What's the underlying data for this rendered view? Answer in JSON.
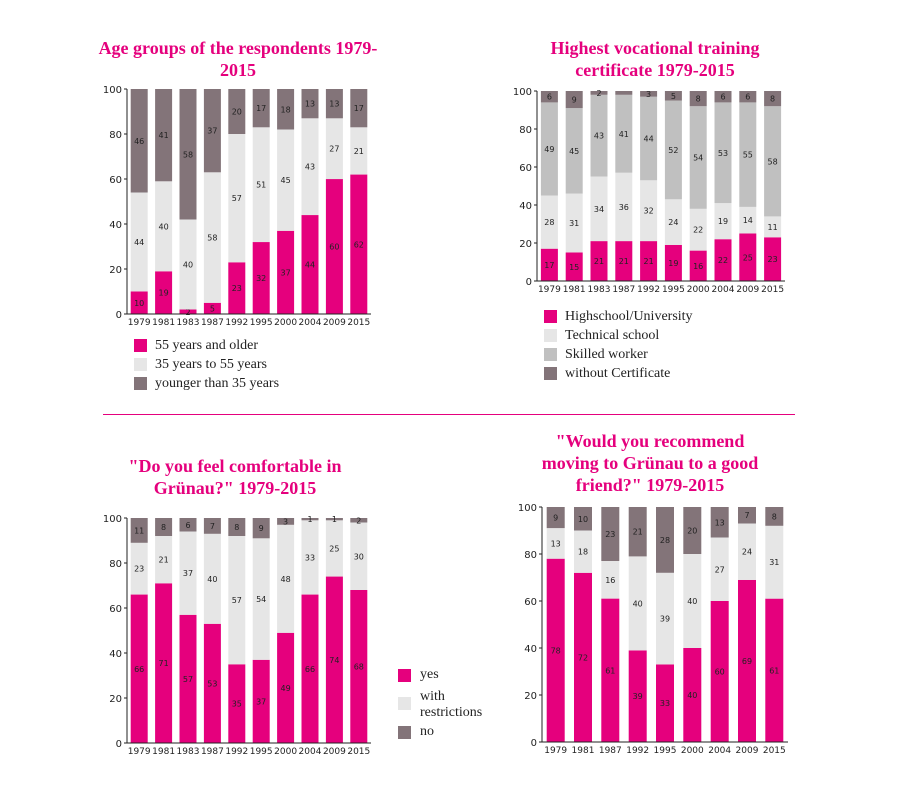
{
  "colors": {
    "magenta": "#e5007d",
    "light": "#e6e6e6",
    "mid": "#c0c0c0",
    "dark": "#837479"
  },
  "legends": {
    "age": [
      {
        "label": "55 years and older",
        "color": "#e5007d"
      },
      {
        "label": "35 years to 55 years",
        "color": "#e6e6e6"
      },
      {
        "label": "younger than 35 years",
        "color": "#837479"
      }
    ],
    "vocational": [
      {
        "label": "Highschool/University",
        "color": "#e5007d"
      },
      {
        "label": "Technical school",
        "color": "#e6e6e6"
      },
      {
        "label": "Skilled worker",
        "color": "#c0c0c0"
      },
      {
        "label": "without Certificate",
        "color": "#837479"
      }
    ],
    "answers": [
      {
        "label": "yes",
        "color": "#e5007d"
      },
      {
        "label": "with restrictions",
        "color": "#e6e6e6"
      },
      {
        "label": "no",
        "color": "#837479"
      }
    ]
  },
  "chart_data": [
    {
      "type": "bar",
      "stacked": true,
      "title": "Age groups of the respondents 1979-2015",
      "categories": [
        "1979",
        "1981",
        "1983",
        "1987",
        "1992",
        "1995",
        "2000",
        "2004",
        "2009",
        "2015"
      ],
      "ylim": [
        0,
        100
      ],
      "yticks": [
        0,
        20,
        40,
        60,
        80,
        100
      ],
      "series": [
        {
          "name": "55 years and older",
          "color": "#e5007d",
          "values": [
            10,
            19,
            2,
            5,
            23,
            32,
            37,
            44,
            60,
            62
          ],
          "labels": [
            "10",
            "19",
            "2",
            "5",
            "23",
            "32",
            "37",
            "44",
            "60",
            "62"
          ]
        },
        {
          "name": "35 years to 55 years",
          "color": "#e6e6e6",
          "values": [
            44,
            40,
            40,
            58,
            57,
            51,
            45,
            43,
            27,
            21
          ],
          "labels": [
            "44",
            "40",
            "40",
            "58",
            "57",
            "51",
            "45",
            "43",
            "27",
            "21"
          ]
        },
        {
          "name": "younger than 35 years",
          "color": "#837479",
          "values": [
            46,
            41,
            58,
            37,
            20,
            17,
            18,
            13,
            13,
            17
          ],
          "labels": [
            "46",
            "41",
            "58",
            "37",
            "20",
            "17",
            "18",
            "13",
            "13",
            "17"
          ]
        }
      ]
    },
    {
      "type": "bar",
      "stacked": true,
      "title": "Highest vocational training certificate 1979-2015",
      "categories": [
        "1979",
        "1981",
        "1983",
        "1987",
        "1992",
        "1995",
        "2000",
        "2004",
        "2009",
        "2015"
      ],
      "ylim": [
        0,
        100
      ],
      "yticks": [
        0,
        20,
        40,
        60,
        80,
        100
      ],
      "series": [
        {
          "name": "Highschool/University",
          "color": "#e5007d",
          "values": [
            17,
            15,
            21,
            21,
            21,
            19,
            16,
            22,
            25,
            23
          ],
          "labels": [
            "17",
            "15",
            "21",
            "21",
            "21",
            "19",
            "16",
            "22",
            "25",
            "23"
          ]
        },
        {
          "name": "Technical school",
          "color": "#e6e6e6",
          "values": [
            28,
            31,
            34,
            36,
            32,
            24,
            22,
            19,
            14,
            11
          ],
          "labels": [
            "28",
            "31",
            "34",
            "36",
            "32",
            "24",
            "22",
            "19",
            "14",
            "11"
          ]
        },
        {
          "name": "Skilled worker",
          "color": "#c0c0c0",
          "values": [
            49,
            45,
            43,
            41,
            44,
            52,
            54,
            53,
            55,
            58
          ],
          "labels": [
            "49",
            "45",
            "43",
            "41",
            "44",
            "52",
            "54",
            "53",
            "55",
            "58"
          ]
        },
        {
          "name": "without Certificate",
          "color": "#837479",
          "values": [
            6,
            9,
            2,
            2,
            3,
            5,
            8,
            6,
            6,
            8
          ],
          "labels": [
            "6",
            "9",
            "2",
            "",
            "3",
            "5",
            "8",
            "6",
            "6",
            "8"
          ]
        }
      ]
    },
    {
      "type": "bar",
      "stacked": true,
      "title": "\"Do you feel comfortable in Grünau?\" 1979-2015",
      "categories": [
        "1979",
        "1981",
        "1983",
        "1987",
        "1992",
        "1995",
        "2000",
        "2004",
        "2009",
        "2015"
      ],
      "ylim": [
        0,
        100
      ],
      "yticks": [
        0,
        20,
        40,
        60,
        80,
        100
      ],
      "series": [
        {
          "name": "yes",
          "color": "#e5007d",
          "values": [
            66,
            71,
            57,
            53,
            35,
            37,
            49,
            66,
            74,
            68
          ],
          "labels": [
            "66",
            "71",
            "57",
            "53",
            "35",
            "37",
            "49",
            "66",
            "74",
            "68"
          ]
        },
        {
          "name": "with restrictions",
          "color": "#e6e6e6",
          "values": [
            23,
            21,
            37,
            40,
            57,
            54,
            48,
            33,
            25,
            30
          ],
          "labels": [
            "23",
            "21",
            "37",
            "40",
            "57",
            "54",
            "48",
            "33",
            "25",
            "30"
          ]
        },
        {
          "name": "no",
          "color": "#837479",
          "values": [
            11,
            8,
            6,
            7,
            8,
            9,
            3,
            1,
            1,
            2
          ],
          "labels": [
            "11",
            "8",
            "6",
            "7",
            "8",
            "9",
            "3",
            "1",
            "1",
            "2"
          ]
        }
      ]
    },
    {
      "type": "bar",
      "stacked": true,
      "title": "\"Would you recommend moving to Grünau to a good friend?\" 1979-2015",
      "categories": [
        "1979",
        "1981",
        "1987",
        "1992",
        "1995",
        "2000",
        "2004",
        "2009",
        "2015"
      ],
      "ylim": [
        0,
        100
      ],
      "yticks": [
        0,
        20,
        40,
        60,
        80,
        100
      ],
      "series": [
        {
          "name": "yes",
          "color": "#e5007d",
          "values": [
            78,
            72,
            61,
            39,
            33,
            40,
            60,
            69,
            61
          ],
          "labels": [
            "78",
            "72",
            "61",
            "39",
            "33",
            "40",
            "60",
            "69",
            "61"
          ]
        },
        {
          "name": "with restrictions",
          "color": "#e6e6e6",
          "values": [
            13,
            18,
            16,
            40,
            39,
            40,
            27,
            24,
            31
          ],
          "labels": [
            "13",
            "18",
            "16",
            "40",
            "39",
            "40",
            "27",
            "24",
            "31"
          ]
        },
        {
          "name": "no",
          "color": "#837479",
          "values": [
            9,
            10,
            23,
            21,
            28,
            20,
            13,
            7,
            8
          ],
          "labels": [
            "9",
            "10",
            "23",
            "21",
            "28",
            "20",
            "13",
            "7",
            "8"
          ]
        }
      ]
    }
  ]
}
